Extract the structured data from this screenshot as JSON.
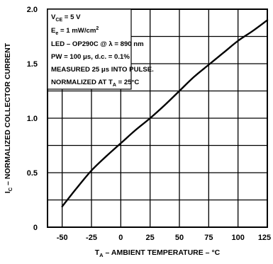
{
  "chart_data": {
    "type": "line",
    "title": "",
    "xlabel": "T_A – AMBIENT TEMPERATURE – °C",
    "ylabel": "I_C – NORMALIZED COLLECTOR CURRENT",
    "xlim": [
      -62.5,
      125
    ],
    "ylim": [
      0,
      2.0
    ],
    "x_ticks": [
      -50,
      -25,
      0,
      25,
      50,
      75,
      100,
      125
    ],
    "y_ticks": [
      0,
      0.5,
      1.0,
      1.5,
      2.0
    ],
    "x_tick_labels": [
      "-50",
      "-25",
      "0",
      "25",
      "50",
      "75",
      "100",
      "125"
    ],
    "y_tick_labels": [
      "0",
      "0.5",
      "1.0",
      "1.5",
      "2.0"
    ],
    "grid": true,
    "annotations": [
      "V_CE = 5 V",
      "E_e = 1 mW/cm²",
      "LED – OP290C @ λ = 890 nm",
      "PW = 100 μs, d.c. = 0.1%",
      "MEASURED 25 μs INTO PULSE.",
      "NORMALIZED AT T_A = 25°C"
    ],
    "series": [
      {
        "x": [
          -50,
          -37.5,
          -25,
          -12.5,
          0,
          12.5,
          25,
          37.5,
          50,
          62.5,
          75,
          87.5,
          100,
          112.5,
          125
        ],
        "values": [
          0.19,
          0.36,
          0.52,
          0.65,
          0.77,
          0.89,
          1.0,
          1.12,
          1.25,
          1.38,
          1.49,
          1.6,
          1.71,
          1.8,
          1.9
        ]
      }
    ]
  }
}
